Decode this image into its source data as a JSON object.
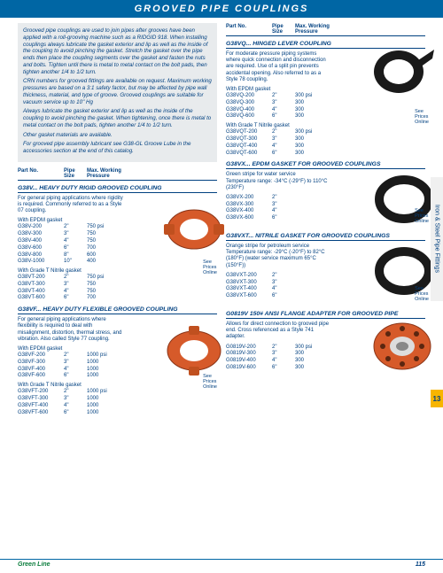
{
  "header": "GROOVED PIPE COUPLINGS",
  "tableHeader": {
    "c1": "Part No.",
    "c2": "Pipe\nSize",
    "c3": "Max. Working\nPressure"
  },
  "intro": {
    "p1": "Grooved pipe couplings are used to join pipes after grooves have been applied with a roll-grooving machine such as a RIDGID 918. When installing couplings always lubricate the gasket exterior and lip as well as the inside of the coupling to avoid pinching the gasket. Stretch the gasket over the pipe ends then place the coupling segments over the gasket and fasten the nuts and bolts. Tighten until there is metal to metal contact on the bolt pads, then tighten another 1/4 to 1/2 turn.",
    "p2": "CRN numbers for grooved fittings are available on request. Maximum working pressures are based on a 3:1 safety factor, but may be affected by pipe wall thickness, material, and type of groove. Grooved couplings are suitable for vacuum service up to 10\" Hg",
    "p3": "Always lubricate the gasket exterior and lip as well as the inside of the coupling to avoid pinching the gasket. When tightening, once there is metal to metal contact on the bolt pads, tighten another 1/4 to 1/2 turn.",
    "p4": "Other gasket materials are available.",
    "p5": "For grooved pipe assembly lubricant see G38-GL Groove Lube in the accessories section at the end of this catalog."
  },
  "seePrices": "See\nPrices\nOnline",
  "sections": {
    "g38v": {
      "title": "G38V... HEAVY DUTY RIGID GROOVED COUPLING",
      "desc": "For general piping applications where rigidity is required. Commonly referred to as a Style 07 coupling.",
      "sub1": "With EPDM gasket",
      "rows1": [
        [
          "G38V-200",
          "2\"",
          "750 psi"
        ],
        [
          "G38V-300",
          "3\"",
          "750"
        ],
        [
          "G38V-400",
          "4\"",
          "750"
        ],
        [
          "G38V-600",
          "6\"",
          "700"
        ],
        [
          "G38V-800",
          "8\"",
          "600"
        ],
        [
          "G38V-1000",
          "10\"",
          "400"
        ]
      ],
      "sub2": "With Grade T Nitrile gasket",
      "rows2": [
        [
          "G38VT-200",
          "2\"",
          "750 psi"
        ],
        [
          "G38VT-300",
          "3\"",
          "750"
        ],
        [
          "G38VT-400",
          "4\"",
          "750"
        ],
        [
          "G38VT-600",
          "6\"",
          "700"
        ]
      ]
    },
    "g38vf": {
      "title": "G38VF... HEAVY DUTY FLEXIBLE GROOVED COUPLING",
      "desc": "For general piping applications where flexibility is required to deal with misalignment, distortion, thermal stress, and vibration. Also called Style 77 coupling.",
      "sub1": "With EPDM gasket",
      "rows1": [
        [
          "G38VF-200",
          "2\"",
          "1000 psi"
        ],
        [
          "G38VF-300",
          "3\"",
          "1000"
        ],
        [
          "G38VF-400",
          "4\"",
          "1000"
        ],
        [
          "G38VF-600",
          "6\"",
          "1000"
        ]
      ],
      "sub2": "With Grade T Nitrile gasket",
      "rows2": [
        [
          "G38VFT-200",
          "2\"",
          "1000 psi"
        ],
        [
          "G38VFT-300",
          "3\"",
          "1000"
        ],
        [
          "G38VFT-400",
          "4\"",
          "1000"
        ],
        [
          "G38VFT-600",
          "6\"",
          "1000"
        ]
      ]
    },
    "g38vq": {
      "title": "G38VQ... HINGED LEVER COUPLING",
      "desc": "For moderate pressure piping systems where quick connection and disconnection are required. Use of a split pin prevents accidental opening. Also referred to as a Style 78 coupling.",
      "sub1": "With EPDM gasket",
      "rows1": [
        [
          "G38VQ-200",
          "2\"",
          "300 psi"
        ],
        [
          "G38VQ-300",
          "3\"",
          "300"
        ],
        [
          "G38VQ-400",
          "4\"",
          "300"
        ],
        [
          "G38VQ-600",
          "6\"",
          "300"
        ]
      ],
      "sub2": "With Grade T Nitrile gasket",
      "rows2": [
        [
          "G38VQT-200",
          "2\"",
          "300 psi"
        ],
        [
          "G38VQT-300",
          "3\"",
          "300"
        ],
        [
          "G38VQT-400",
          "4\"",
          "300"
        ],
        [
          "G38VQT-600",
          "6\"",
          "300"
        ]
      ]
    },
    "g38vx": {
      "title": "G38VX... EPDM GASKET FOR GROOVED COUPLINGS",
      "desc": "Green stripe for water service\nTemperature range: -34°C (-29°F) to 110°C (230°F)",
      "rows": [
        [
          "G38VX-200",
          "2\"",
          ""
        ],
        [
          "G38VX-300",
          "3\"",
          ""
        ],
        [
          "G38VX-400",
          "4\"",
          ""
        ],
        [
          "G38VX-600",
          "6\"",
          ""
        ]
      ]
    },
    "g38vxt": {
      "title": "G38VXT... NITRILE GASKET FOR GROOVED COUPLINGS",
      "desc": "Orange stripe for petroleum service\nTemperature range: -29°C (-20°F) to 82°C (180°F) (water service maximum 65°C (150°F))",
      "rows": [
        [
          "G38VXT-200",
          "2\"",
          ""
        ],
        [
          "G38VXT-300",
          "3\"",
          ""
        ],
        [
          "G38VXT-400",
          "4\"",
          ""
        ],
        [
          "G38VXT-600",
          "6\"",
          ""
        ]
      ]
    },
    "g0819v": {
      "title": "G0819V 150# ANSI FLANGE ADAPTER FOR GROOVED PIPE",
      "desc": "Allows for direct connection to grooved pipe end. Cross referenced as a Style 741 adapter.",
      "rows": [
        [
          "G0819V-200",
          "2\"",
          "300 psi"
        ],
        [
          "G0819V-300",
          "3\"",
          "300"
        ],
        [
          "G0819V-400",
          "4\"",
          "300"
        ],
        [
          "G0819V-600",
          "6\"",
          "300"
        ]
      ]
    }
  },
  "sideTab": "Iron & Steel Pipe Fittings",
  "sideTabNum": "13",
  "footer": {
    "brand": "Green Line",
    "page": "115"
  }
}
